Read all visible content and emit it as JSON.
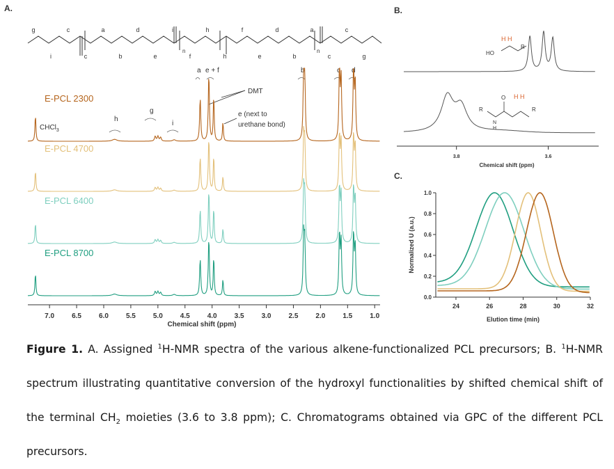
{
  "panels": {
    "a": "A.",
    "b": "B.",
    "c": "C."
  },
  "chart_data": [
    {
      "panel": "A",
      "type": "line",
      "title": "",
      "xlabel": "Chemical shift (ppm)",
      "ylabel": "",
      "x_ticks": [
        "7.0",
        "6.5",
        "6.0",
        "5.5",
        "5.0",
        "4.5",
        "4.0",
        "3.5",
        "3.0",
        "2.5",
        "2.0",
        "1.5",
        "1.0"
      ],
      "xlim": [
        7.4,
        0.9
      ],
      "x_reversed": true,
      "series": [
        {
          "name": "E-PCL 2300",
          "color": "#b5651d"
        },
        {
          "name": "E-PCL 4700",
          "color": "#e3c07a"
        },
        {
          "name": "E-PCL 6400",
          "color": "#7fcfbf"
        },
        {
          "name": "E-PCL 8700",
          "color": "#1f9e80"
        }
      ],
      "peaks_ppm": [
        {
          "label": "CHCl3",
          "x": 7.26
        },
        {
          "label": "h",
          "x": 5.8
        },
        {
          "label": "g",
          "x": 5.0
        },
        {
          "label": "i",
          "x": 4.7
        },
        {
          "label": "a",
          "x": 4.22
        },
        {
          "label": "e+f",
          "x": 4.06
        },
        {
          "label": "DMT",
          "x": 3.97
        },
        {
          "label": "e (next to urethane bond)",
          "x": 3.8
        },
        {
          "label": "b",
          "x": 2.31
        },
        {
          "label": "c",
          "x": 1.65
        },
        {
          "label": "d",
          "x": 1.38
        }
      ],
      "annotations": {
        "chcl3": "CHCl",
        "chcl3_sub": "3",
        "dmt": "DMT",
        "e_line1": "e (next to",
        "e_line2": "urethane bond)",
        "peak_letters": {
          "a": "a",
          "ef": "e + f",
          "b": "b",
          "c": "c",
          "d": "d",
          "h": "h",
          "g": "g",
          "i": "i"
        }
      },
      "structure_letters": [
        "g",
        "i",
        "c",
        "c",
        "a",
        "b",
        "d",
        "e",
        "i",
        "f",
        "h",
        "h",
        "f",
        "e",
        "d",
        "b",
        "a",
        "c",
        "c",
        "g"
      ],
      "subscript_n": "n"
    },
    {
      "panel": "B",
      "type": "line",
      "title": "",
      "xlabel": "Chemical shift (ppm)",
      "ylabel": "",
      "x_ticks": [
        "3.8",
        "3.6"
      ],
      "xlim": [
        3.93,
        3.49
      ],
      "x_reversed": true,
      "series": [
        {
          "name": "",
          "color": "#555555",
          "peaks_ppm": [
            3.64,
            3.61,
            3.59
          ]
        },
        {
          "name": "",
          "color": "#555555",
          "peaks_ppm": [
            3.82,
            3.79
          ]
        }
      ],
      "struct_top": {
        "h": "H H",
        "ho": "HO",
        "r": "R"
      },
      "struct_bottom": {
        "h": "H H",
        "o": "O",
        "r1": "R",
        "n": "N",
        "nh": "H",
        "r2": "R"
      }
    },
    {
      "panel": "C",
      "type": "line",
      "title": "",
      "xlabel": "Elution time (min)",
      "ylabel": "Normalized U (a.u.)",
      "x_ticks": [
        24,
        26,
        28,
        30,
        32
      ],
      "y_ticks": [
        "0.0",
        "0.2",
        "0.4",
        "0.6",
        "0.8",
        "1.0"
      ],
      "xlim": [
        22.8,
        32
      ],
      "ylim": [
        0,
        1.0
      ],
      "series": [
        {
          "name": "E-PCL 8700",
          "color": "#1f9e80",
          "peak": 26.3,
          "width": 1.1,
          "baseline": 0.14
        },
        {
          "name": "E-PCL 6400",
          "color": "#7fcfbf",
          "peak": 26.9,
          "width": 1.15,
          "baseline": 0.11
        },
        {
          "name": "E-PCL 4700",
          "color": "#e3c07a",
          "peak": 28.3,
          "width": 0.75,
          "baseline": 0.08
        },
        {
          "name": "E-PCL 2300",
          "color": "#b5651d",
          "peak": 29.0,
          "width": 0.8,
          "baseline": 0.06
        }
      ]
    }
  ],
  "caption": {
    "figure": "Figure 1.",
    "p1": " A. Assigned ",
    "sup1": "1",
    "p2": "H-NMR spectra of the various alkene-functionalized PCL precursors; B. ",
    "sup2": "1",
    "p3": "H-NMR spectrum illustrating quantitative conversion of the hydroxyl functionalities by shifted chemical shift of the terminal CH",
    "sub1": "2",
    "p4": " moieties (3.6 to 3.8 ppm); C. Chromatograms obtained via GPC of the different PCL precursors."
  }
}
